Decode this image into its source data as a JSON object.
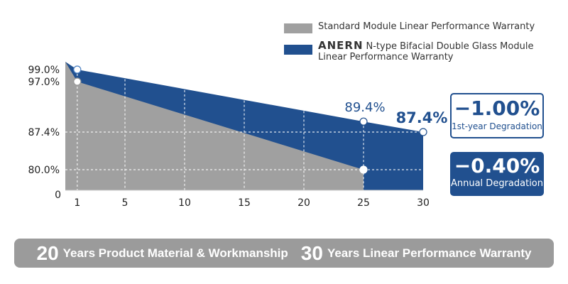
{
  "chart_data": {
    "type": "area",
    "x_ticks": [
      "1",
      "5",
      "10",
      "15",
      "20",
      "25",
      "30"
    ],
    "y_ticks": [
      "0",
      "80.0%",
      "87.4%",
      "97.0%",
      "99.0%"
    ],
    "series": [
      {
        "name": "Standard Module Linear Performance Warranty",
        "x": [
          0,
          1,
          25
        ],
        "y": [
          100,
          97,
          80
        ],
        "color": "#a0a0a0"
      },
      {
        "name": "ANERN N-type Bifacial Double Glass Module Linear Performance Warranty",
        "x": [
          0,
          1,
          25,
          30
        ],
        "y": [
          100,
          99,
          89.4,
          87.4
        ],
        "color": "#21508f"
      }
    ],
    "annotations": [
      "89.4%",
      "87.4%"
    ],
    "grid": "dashed white",
    "legend": "top-right"
  },
  "legend": {
    "standard": "Standard Module Linear Performance Warranty",
    "brand": "ANERN",
    "anern_line1": "N-type Bifacial Double Glass Module",
    "anern_line2": "Linear Performance Warranty"
  },
  "stats": {
    "first_year_value": "−1.00%",
    "first_year_label": "1st-year Degradation",
    "annual_value": "−0.40%",
    "annual_label": "Annual Degradation"
  },
  "banner": {
    "num1": "20",
    "text1": "Years Product Material & Workmanship",
    "num2": "30",
    "text2": "Years Linear Performance Warranty"
  }
}
